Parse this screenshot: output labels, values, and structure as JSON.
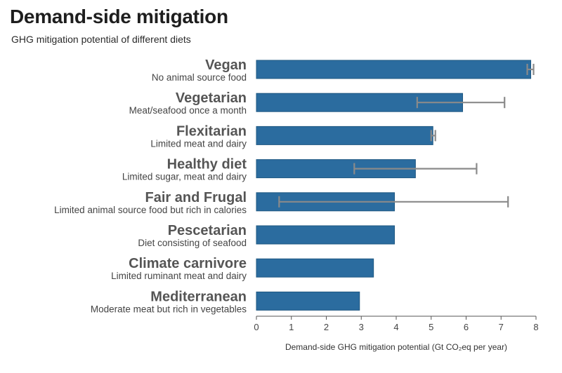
{
  "chart_data": {
    "type": "bar",
    "orientation": "horizontal",
    "title": "Demand-side mitigation",
    "subtitle": "GHG mitigation potential of different diets",
    "categories": [
      {
        "name": "Vegan",
        "description": "No animal source food",
        "value": 7.85,
        "error_low": 7.75,
        "error_high": 7.93
      },
      {
        "name": "Vegetarian",
        "description": "Meat/seafood once a month",
        "value": 5.9,
        "error_low": 4.6,
        "error_high": 7.1
      },
      {
        "name": "Flexitarian",
        "description": "Limited meat and dairy",
        "value": 5.05,
        "error_low": 5.0,
        "error_high": 5.12
      },
      {
        "name": "Healthy diet",
        "description": "Limited sugar, meat and dairy",
        "value": 4.55,
        "error_low": 2.8,
        "error_high": 6.3
      },
      {
        "name": "Fair and Frugal",
        "description": "Limited animal source food but rich in calories",
        "value": 3.95,
        "error_low": 0.65,
        "error_high": 7.2
      },
      {
        "name": "Pescetarian",
        "description": "Diet consisting of seafood",
        "value": 3.95,
        "error_low": null,
        "error_high": null
      },
      {
        "name": "Climate carnivore",
        "description": "Limited ruminant meat and dairy",
        "value": 3.35,
        "error_low": null,
        "error_high": null
      },
      {
        "name": "Mediterranean",
        "description": "Moderate meat but rich in vegetables",
        "value": 2.95,
        "error_low": null,
        "error_high": null
      }
    ],
    "xlabel": "Demand-side GHG mitigation potential (Gt CO₂eq per year)",
    "xlim": [
      0,
      8
    ],
    "xticks": [
      "0",
      "1",
      "2",
      "3",
      "4",
      "5",
      "6",
      "7",
      "8"
    ],
    "grid": false,
    "colors": {
      "bar": "#2b6c9f",
      "bar_edge": "#1f5882",
      "error_bar": "#8a8a8a",
      "axis": "#555555"
    }
  }
}
